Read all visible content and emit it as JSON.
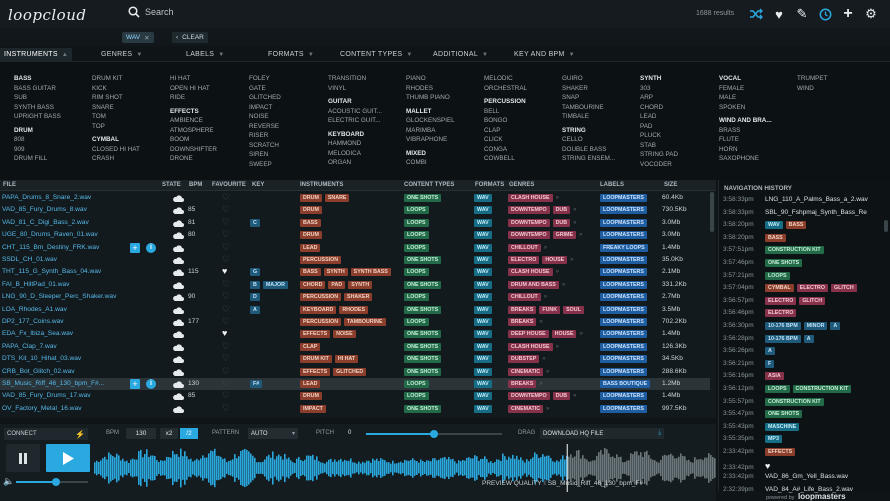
{
  "app": {
    "logo": "loopcloud",
    "search_placeholder": "Search",
    "results": "1688 results"
  },
  "filters": {
    "active": "WAV",
    "clear": "CLEAR"
  },
  "category_tabs": [
    "INSTRUMENTS",
    "GENRES",
    "LABELS",
    "FORMATS",
    "CONTENT TYPES",
    "ADDITIONAL",
    "KEY AND BPM"
  ],
  "categories": [
    {
      "lines": [
        [
          "h",
          "BASS"
        ],
        [
          "i",
          "BASS GUITAR"
        ],
        [
          "i",
          "SUB"
        ],
        [
          "i",
          "SYNTH BASS"
        ],
        [
          "i",
          "UPRIGHT BASS"
        ],
        [
          "g",
          ""
        ],
        [
          "h",
          "DRUM"
        ],
        [
          "i",
          "808"
        ],
        [
          "i",
          "909"
        ],
        [
          "i",
          "DRUM FILL"
        ]
      ]
    },
    {
      "lines": [
        [
          "i",
          "DRUM KIT"
        ],
        [
          "i",
          "KICK"
        ],
        [
          "i",
          "RIM SHOT"
        ],
        [
          "i",
          "SNARE"
        ],
        [
          "i",
          "TOM"
        ],
        [
          "i",
          "TOP"
        ],
        [
          "g",
          ""
        ],
        [
          "h",
          "CYMBAL"
        ],
        [
          "i",
          "CLOSED HI HAT"
        ],
        [
          "i",
          "CRASH"
        ]
      ]
    },
    {
      "lines": [
        [
          "i",
          "HI HAT"
        ],
        [
          "i",
          "OPEN HI HAT"
        ],
        [
          "i",
          "RIDE"
        ],
        [
          "g",
          ""
        ],
        [
          "h",
          "EFFECTS"
        ],
        [
          "i",
          "AMBIENCE"
        ],
        [
          "i",
          "ATMOSPHERE"
        ],
        [
          "i",
          "BOOM"
        ],
        [
          "i",
          "DOWNSHIFTER"
        ],
        [
          "i",
          "DRONE"
        ]
      ]
    },
    {
      "lines": [
        [
          "i",
          "FOLEY"
        ],
        [
          "i",
          "GATE"
        ],
        [
          "i",
          "GLITCHED"
        ],
        [
          "i",
          "IMPACT"
        ],
        [
          "i",
          "NOISE"
        ],
        [
          "i",
          "REVERSE"
        ],
        [
          "i",
          "RISER"
        ],
        [
          "i",
          "SCRATCH"
        ],
        [
          "i",
          "SIREN"
        ],
        [
          "i",
          "SWEEP"
        ]
      ]
    },
    {
      "lines": [
        [
          "i",
          "TRANSITION"
        ],
        [
          "i",
          "VINYL"
        ],
        [
          "g",
          ""
        ],
        [
          "h",
          "GUITAR"
        ],
        [
          "i",
          "ACOUSTIC GUIT..."
        ],
        [
          "i",
          "ELECTRIC GUIT..."
        ],
        [
          "g",
          ""
        ],
        [
          "h",
          "KEYBOARD"
        ],
        [
          "i",
          "HAMMOND"
        ],
        [
          "i",
          "MELODICA"
        ],
        [
          "i",
          "ORGAN"
        ]
      ]
    },
    {
      "lines": [
        [
          "i",
          "PIANO"
        ],
        [
          "i",
          "RHODES"
        ],
        [
          "i",
          "THUMB PIANO"
        ],
        [
          "g",
          ""
        ],
        [
          "h",
          "MALLET"
        ],
        [
          "i",
          "GLOCKENSPIEL"
        ],
        [
          "i",
          "MARIMBA"
        ],
        [
          "i",
          "VIBRAPHONE"
        ],
        [
          "g",
          ""
        ],
        [
          "h",
          "MIXED"
        ],
        [
          "i",
          "COMBI"
        ]
      ]
    },
    {
      "lines": [
        [
          "i",
          "MELODIC"
        ],
        [
          "i",
          "ORCHESTRAL"
        ],
        [
          "g",
          ""
        ],
        [
          "h",
          "PERCUSSION"
        ],
        [
          "i",
          "BELL"
        ],
        [
          "i",
          "BONGO"
        ],
        [
          "i",
          "CLAP"
        ],
        [
          "i",
          "CLICK"
        ],
        [
          "i",
          "CONGA"
        ],
        [
          "i",
          "COWBELL"
        ]
      ]
    },
    {
      "lines": [
        [
          "i",
          "GUIRO"
        ],
        [
          "i",
          "SHAKER"
        ],
        [
          "i",
          "SNAP"
        ],
        [
          "i",
          "TAMBOURINE"
        ],
        [
          "i",
          "TIMBALE"
        ],
        [
          "g",
          ""
        ],
        [
          "h",
          "STRING"
        ],
        [
          "i",
          "CELLO"
        ],
        [
          "i",
          "DOUBLE BASS"
        ],
        [
          "i",
          "STRING ENSEM..."
        ]
      ]
    },
    {
      "lines": [
        [
          "h",
          "SYNTH"
        ],
        [
          "i",
          "303"
        ],
        [
          "i",
          "ARP"
        ],
        [
          "i",
          "CHORD"
        ],
        [
          "i",
          "LEAD"
        ],
        [
          "i",
          "PAD"
        ],
        [
          "i",
          "PLUCK"
        ],
        [
          "i",
          "STAB"
        ],
        [
          "i",
          "STRING PAD"
        ],
        [
          "i",
          "VOCODER"
        ]
      ]
    },
    {
      "lines": [
        [
          "h",
          "VOCAL"
        ],
        [
          "i",
          "FEMALE"
        ],
        [
          "i",
          "MALE"
        ],
        [
          "i",
          "SPOKEN"
        ],
        [
          "g",
          ""
        ],
        [
          "h",
          "WIND AND BRA..."
        ],
        [
          "i",
          "BRASS"
        ],
        [
          "i",
          "FLUTE"
        ],
        [
          "i",
          "HORN"
        ],
        [
          "i",
          "SAXOPHONE"
        ]
      ]
    },
    {
      "lines": [
        [
          "i",
          "TRUMPET"
        ],
        [
          "i",
          "WIND"
        ]
      ]
    }
  ],
  "columns": [
    "FILE",
    "STATE",
    "BPM",
    "FAVOURITE",
    "KEY",
    "INSTRUMENTS",
    "CONTENT TYPES",
    "FORMATS",
    "GENRES",
    "LABELS",
    "SIZE"
  ],
  "rows": [
    {
      "file": "PAPA_Drums_8_Snare_2.wav",
      "bpm": "",
      "key": "",
      "fav": false,
      "inst": [
        "DRUM",
        "SNARE"
      ],
      "ct": [
        "ONE SHOTS"
      ],
      "gen": [
        "CLASH HOUSE"
      ],
      "gmore": true,
      "lab": "LOOPMASTERS",
      "size": "60.4Kb"
    },
    {
      "file": "VAD_85_Fury_Drums_8.wav",
      "bpm": "85",
      "key": "",
      "fav": false,
      "inst": [
        "DRUM"
      ],
      "ct": [
        "LOOPS"
      ],
      "gen": [
        "DOWNTEMPO",
        "DUB"
      ],
      "gmore": true,
      "lab": "LOOPMASTERS",
      "size": "730.5Kb"
    },
    {
      "file": "VAD_81_C_Digi_Bass_2.wav",
      "bpm": "81",
      "key": "C",
      "fav": false,
      "inst": [
        "BASS"
      ],
      "ct": [
        "LOOPS"
      ],
      "gen": [
        "DOWNTEMPO",
        "DUB"
      ],
      "gmore": true,
      "lab": "LOOPMASTERS",
      "size": "3.0Mb"
    },
    {
      "file": "UGE_80_Drums_Raven_01.wav",
      "bpm": "80",
      "key": "",
      "fav": false,
      "inst": [
        "DRUM"
      ],
      "ct": [
        "LOOPS"
      ],
      "gen": [
        "DOWNTEMPO",
        "GRIME"
      ],
      "gmore": true,
      "lab": "LOOPMASTERS",
      "size": "3.0Mb"
    },
    {
      "file": "CHT_115_Bm_Destiny_FRK.wav",
      "bpm": "",
      "key": "",
      "fav": false,
      "actions": true,
      "inst": [
        "LEAD"
      ],
      "ct": [
        "LOOPS"
      ],
      "gen": [
        "CHILLOUT"
      ],
      "gmore": true,
      "lab": "FREAKY LOOPS",
      "size": "1.4Mb"
    },
    {
      "file": "SSDL_CH_01.wav",
      "bpm": "",
      "key": "",
      "fav": false,
      "inst": [
        "PERCUSSION"
      ],
      "ct": [
        "ONE SHOTS"
      ],
      "gen": [
        "ELECTRO",
        "HOUSE"
      ],
      "gmore": true,
      "lab": "LOOPMASTERS",
      "size": "35.0Kb"
    },
    {
      "file": "THT_115_G_Synth_Bass_04.wav",
      "bpm": "115",
      "key": "G",
      "fav": true,
      "inst": [
        "BASS",
        "SYNTH",
        "SYNTH BASS"
      ],
      "ct": [
        "LOOPS"
      ],
      "gen": [
        "CLASH HOUSE"
      ],
      "gmore": true,
      "lab": "LOOPMASTERS",
      "size": "2.1Mb"
    },
    {
      "file": "FAI_B_HiltPad_01.wav",
      "bpm": "",
      "key": "B",
      "keymore": "MAJOR",
      "fav": false,
      "inst": [
        "CHORD",
        "PAD",
        "SYNTH"
      ],
      "ct": [
        "ONE SHOTS"
      ],
      "gen": [
        "DRUM AND BASS"
      ],
      "gmore": true,
      "lab": "LOOPMASTERS",
      "size": "331.2Kb"
    },
    {
      "file": "LNG_90_D_Sleeper_Perc_Shaker.wav",
      "bpm": "90",
      "key": "D",
      "fav": false,
      "inst": [
        "PERCUSSION",
        "SHAKER"
      ],
      "ct": [
        "LOOPS"
      ],
      "gen": [
        "CHILLOUT"
      ],
      "gmore": true,
      "lab": "LOOPMASTERS",
      "size": "2.7Mb"
    },
    {
      "file": "LOA_Rhodes_A1.wav",
      "bpm": "",
      "key": "A",
      "fav": false,
      "inst": [
        "KEYBOARD",
        "RHODES"
      ],
      "ct": [
        "ONE SHOTS"
      ],
      "gen": [
        "BREAKS",
        "FUNK",
        "SOUL"
      ],
      "gmore": false,
      "lab": "LOOPMASTERS",
      "size": "3.5Mb"
    },
    {
      "file": "DP2_177_Coins.wav",
      "bpm": "177",
      "key": "",
      "fav": false,
      "inst": [
        "PERCUSSION",
        "TAMBOURINE"
      ],
      "ct": [
        "LOOPS"
      ],
      "gen": [
        "BREAKS"
      ],
      "gmore": true,
      "lab": "LOOPMASTERS",
      "size": "702.2Kb"
    },
    {
      "file": "EDA_Fx_Ibiza_Sea.wav",
      "bpm": "",
      "key": "",
      "fav": true,
      "inst": [
        "EFFECTS",
        "NOISE"
      ],
      "ct": [
        "ONE SHOTS"
      ],
      "gen": [
        "DEEP HOUSE",
        "HOUSE"
      ],
      "gmore": true,
      "lab": "LOOPMASTERS",
      "size": "1.4Mb"
    },
    {
      "file": "PAPA_Clap_7.wav",
      "bpm": "",
      "key": "",
      "fav": false,
      "inst": [
        "CLAP"
      ],
      "ct": [
        "ONE SHOTS"
      ],
      "gen": [
        "CLASH HOUSE"
      ],
      "gmore": true,
      "lab": "LOOPMASTERS",
      "size": "126.3Kb"
    },
    {
      "file": "DTS_Kit_10_Hihat_03.wav",
      "bpm": "",
      "key": "",
      "fav": false,
      "inst": [
        "DRUM KIT",
        "HI HAT"
      ],
      "ct": [
        "ONE SHOTS"
      ],
      "gen": [
        "DUBSTEP"
      ],
      "gmore": true,
      "lab": "LOOPMASTERS",
      "size": "34.5Kb"
    },
    {
      "file": "CRB_Bot_Glitch_02.wav",
      "bpm": "",
      "key": "",
      "fav": false,
      "inst": [
        "EFFECTS",
        "GLITCHED"
      ],
      "ct": [
        "ONE SHOTS"
      ],
      "gen": [
        "CINEMATIC"
      ],
      "gmore": true,
      "lab": "LOOPMASTERS",
      "size": "288.6Kb"
    },
    {
      "file": "SB_Music_Riff_46_130_bpm_F#...",
      "bpm": "130",
      "key": "F#",
      "fav": false,
      "sel": true,
      "actions": true,
      "inst": [
        "LEAD"
      ],
      "ct": [
        "LOOPS"
      ],
      "gen": [
        "BREAKS"
      ],
      "gmore": true,
      "lab": "BASS BOUTIQUE",
      "size": "1.2Mb"
    },
    {
      "file": "VAD_85_Fury_Drums_17.wav",
      "bpm": "85",
      "key": "",
      "fav": false,
      "inst": [
        "DRUM"
      ],
      "ct": [
        "LOOPS"
      ],
      "gen": [
        "DOWNTEMPO",
        "DUB"
      ],
      "gmore": true,
      "lab": "LOOPMASTERS",
      "size": "1.4Mb"
    },
    {
      "file": "OV_Factory_Metal_16.wav",
      "bpm": "",
      "key": "",
      "fav": false,
      "inst": [
        "IMPACT"
      ],
      "ct": [
        "ONE SHOTS"
      ],
      "gen": [
        "CINEMATIC"
      ],
      "gmore": true,
      "lab": "LOOPMASTERS",
      "size": "997.5Kb"
    }
  ],
  "nav": {
    "title": "NAVIGATION HISTORY",
    "items": [
      {
        "t": "3:58:33pm",
        "n": "LNG_110_A_Palms_Bass_a_2.wav"
      },
      {
        "t": "3:58:33pm",
        "n": "SBL_90_Fshpmaj_Synth_Bass_Re"
      },
      {
        "t": "3:58:20pm",
        "tags": [
          [
            "WAV",
            "fmt"
          ],
          [
            "BASS",
            "inst"
          ]
        ]
      },
      {
        "t": "3:58:20pm",
        "tags": [
          [
            "BASS",
            "inst"
          ]
        ]
      },
      {
        "t": "3:57:51pm",
        "tags": [
          [
            "CONSTRUCTION KIT",
            "ct"
          ]
        ]
      },
      {
        "t": "3:57:46pm",
        "tags": [
          [
            "ONE SHOTS",
            "ct"
          ]
        ]
      },
      {
        "t": "3:57:21pm",
        "tags": [
          [
            "LOOPS",
            "ct"
          ]
        ]
      },
      {
        "t": "3:57:04pm",
        "tags": [
          [
            "CYMBAL",
            "inst"
          ],
          [
            "ELECTRO",
            "gen"
          ],
          [
            "GLITCH",
            "gen"
          ]
        ]
      },
      {
        "t": "3:56:57pm",
        "tags": [
          [
            "ELECTRO",
            "gen"
          ],
          [
            "GLITCH",
            "gen"
          ]
        ]
      },
      {
        "t": "3:56:46pm",
        "tags": [
          [
            "ELECTRO",
            "gen"
          ]
        ]
      },
      {
        "t": "3:56:30pm",
        "tags": [
          [
            "10-176 BPM",
            "key"
          ],
          [
            "MINOR",
            "key"
          ],
          [
            "A",
            "key"
          ]
        ]
      },
      {
        "t": "3:56:28pm",
        "tags": [
          [
            "10-176 BPM",
            "key"
          ],
          [
            "A",
            "key"
          ]
        ]
      },
      {
        "t": "3:56:26pm",
        "tags": [
          [
            "A",
            "key"
          ]
        ]
      },
      {
        "t": "3:56:21pm",
        "tags": [
          [
            "F",
            "key"
          ]
        ]
      },
      {
        "t": "3:56:16pm",
        "tags": [
          [
            "ASIA",
            "gen"
          ]
        ]
      },
      {
        "t": "3:56:12pm",
        "tags": [
          [
            "LOOPS",
            "ct"
          ],
          [
            "CONSTRUCTION KIT",
            "ct"
          ]
        ]
      },
      {
        "t": "3:55:57pm",
        "tags": [
          [
            "CONSTRUCTION KIT",
            "ct"
          ]
        ]
      },
      {
        "t": "3:55:47pm",
        "tags": [
          [
            "ONE SHOTS",
            "ct"
          ]
        ]
      },
      {
        "t": "3:55:43pm",
        "tags": [
          [
            "MASCHINE",
            "fmt"
          ]
        ]
      },
      {
        "t": "3:55:35pm",
        "tags": [
          [
            "MP3",
            "fmt"
          ]
        ]
      },
      {
        "t": "2:33:42pm",
        "tags": [
          [
            "EFFECTS",
            "inst"
          ]
        ]
      },
      {
        "t": "2:33:42pm",
        "heart": true
      },
      {
        "t": "2:33:42pm",
        "n": "VAD_86_Gm_Yell_Bass.wav"
      },
      {
        "t": "2:32:39pm",
        "n": "VAD_84_A#_Life_Bass_2.wav"
      }
    ]
  },
  "player": {
    "connect": "CONNECT",
    "bpm_label": "BPM",
    "bpm": "130",
    "x2": "x2",
    "half": "/2",
    "pattern_label": "PATTERN",
    "pattern": "AUTO",
    "pitch_label": "PITCH",
    "pitch": "0",
    "drag_label": "DRAG",
    "download": "DOWNLOAD HQ FILE",
    "preview": "PREVIEW QUALITY",
    "now_playing": "SB_Music_Riff_46_130_bpm_F#",
    "pitch_fraction": 0.5,
    "volume_fraction": 0.55,
    "progress_fraction": 0.76
  },
  "footer": {
    "powered": "powered by",
    "brand": "loopmasters"
  },
  "colors": {
    "accent": "#2aa8e0",
    "bg": "#0f1417"
  }
}
